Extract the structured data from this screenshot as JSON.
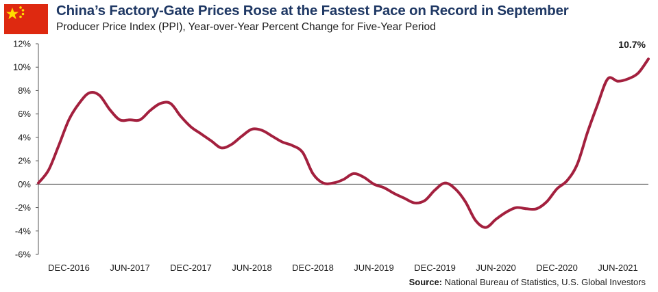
{
  "header": {
    "title": "China’s Factory-Gate Prices Rose at the Fastest Pace on Record in September",
    "subtitle": "Producer Price Index (PPI), Year-over-Year Percent Change for Five-Year Period",
    "flag_icon": "china-flag-icon"
  },
  "footer": {
    "source_label": "Source:",
    "source_text": "National Bureau of Statistics, U.S. Global Investors"
  },
  "colors": {
    "line": "#a3203e",
    "title": "#1f3864",
    "axis": "#555555",
    "flag_red": "#de2910",
    "flag_star": "#ffde00"
  },
  "chart_data": {
    "type": "line",
    "title": "China’s Factory-Gate Prices Rose at the Fastest Pace on Record in September",
    "subtitle": "Producer Price Index (PPI), Year-over-Year Percent Change for Five-Year Period",
    "xlabel": "",
    "ylabel": "",
    "ylim": [
      -6,
      12
    ],
    "yticks": [
      12,
      10,
      8,
      6,
      4,
      2,
      0,
      -2,
      -4,
      -6
    ],
    "ytick_labels": [
      "12%",
      "10%",
      "8%",
      "6%",
      "4%",
      "2%",
      "0%",
      "-2%",
      "-4%",
      "-6%"
    ],
    "xlim": [
      "2016-09",
      "2021-09"
    ],
    "xtick_dates": [
      "2016-12",
      "2017-06",
      "2017-12",
      "2018-06",
      "2018-12",
      "2019-06",
      "2019-12",
      "2020-06",
      "2020-12",
      "2021-06"
    ],
    "xtick_labels": [
      "DEC-2016",
      "JUN-2017",
      "DEC-2017",
      "JUN-2018",
      "DEC-2018",
      "JUN-2019",
      "DEC-2019",
      "JUN-2020",
      "DEC-2020",
      "JUN-2021"
    ],
    "grid": false,
    "zero_line": true,
    "series": [
      {
        "x": [
          "2016-09",
          "2016-10",
          "2016-11",
          "2016-12",
          "2017-01",
          "2017-02",
          "2017-03",
          "2017-04",
          "2017-05",
          "2017-06",
          "2017-07",
          "2017-08",
          "2017-09",
          "2017-10",
          "2017-11",
          "2017-12",
          "2018-01",
          "2018-02",
          "2018-03",
          "2018-04",
          "2018-05",
          "2018-06",
          "2018-07",
          "2018-08",
          "2018-09",
          "2018-10",
          "2018-11",
          "2018-12",
          "2019-01",
          "2019-02",
          "2019-03",
          "2019-04",
          "2019-05",
          "2019-06",
          "2019-07",
          "2019-08",
          "2019-09",
          "2019-10",
          "2019-11",
          "2019-12",
          "2020-01",
          "2020-02",
          "2020-03",
          "2020-04",
          "2020-05",
          "2020-06",
          "2020-07",
          "2020-08",
          "2020-09",
          "2020-10",
          "2020-11",
          "2020-12",
          "2021-01",
          "2021-02",
          "2021-03",
          "2021-04",
          "2021-05",
          "2021-06",
          "2021-07",
          "2021-08",
          "2021-09"
        ],
        "values": [
          0.1,
          1.2,
          3.3,
          5.5,
          6.9,
          7.8,
          7.6,
          6.4,
          5.5,
          5.5,
          5.5,
          6.3,
          6.9,
          6.9,
          5.8,
          4.9,
          4.3,
          3.7,
          3.1,
          3.4,
          4.1,
          4.7,
          4.6,
          4.1,
          3.6,
          3.3,
          2.7,
          0.9,
          0.1,
          0.1,
          0.4,
          0.9,
          0.6,
          0.0,
          -0.3,
          -0.8,
          -1.2,
          -1.6,
          -1.4,
          -0.5,
          0.1,
          -0.4,
          -1.5,
          -3.1,
          -3.7,
          -3.0,
          -2.4,
          -2.0,
          -2.1,
          -2.1,
          -1.5,
          -0.4,
          0.3,
          1.7,
          4.4,
          6.8,
          9.0,
          8.8,
          9.0,
          9.5,
          10.7
        ],
        "color": "#a3203e"
      }
    ],
    "annotations": [
      {
        "text": "10.7%",
        "x": "2021-09",
        "y": 10.7
      }
    ]
  }
}
